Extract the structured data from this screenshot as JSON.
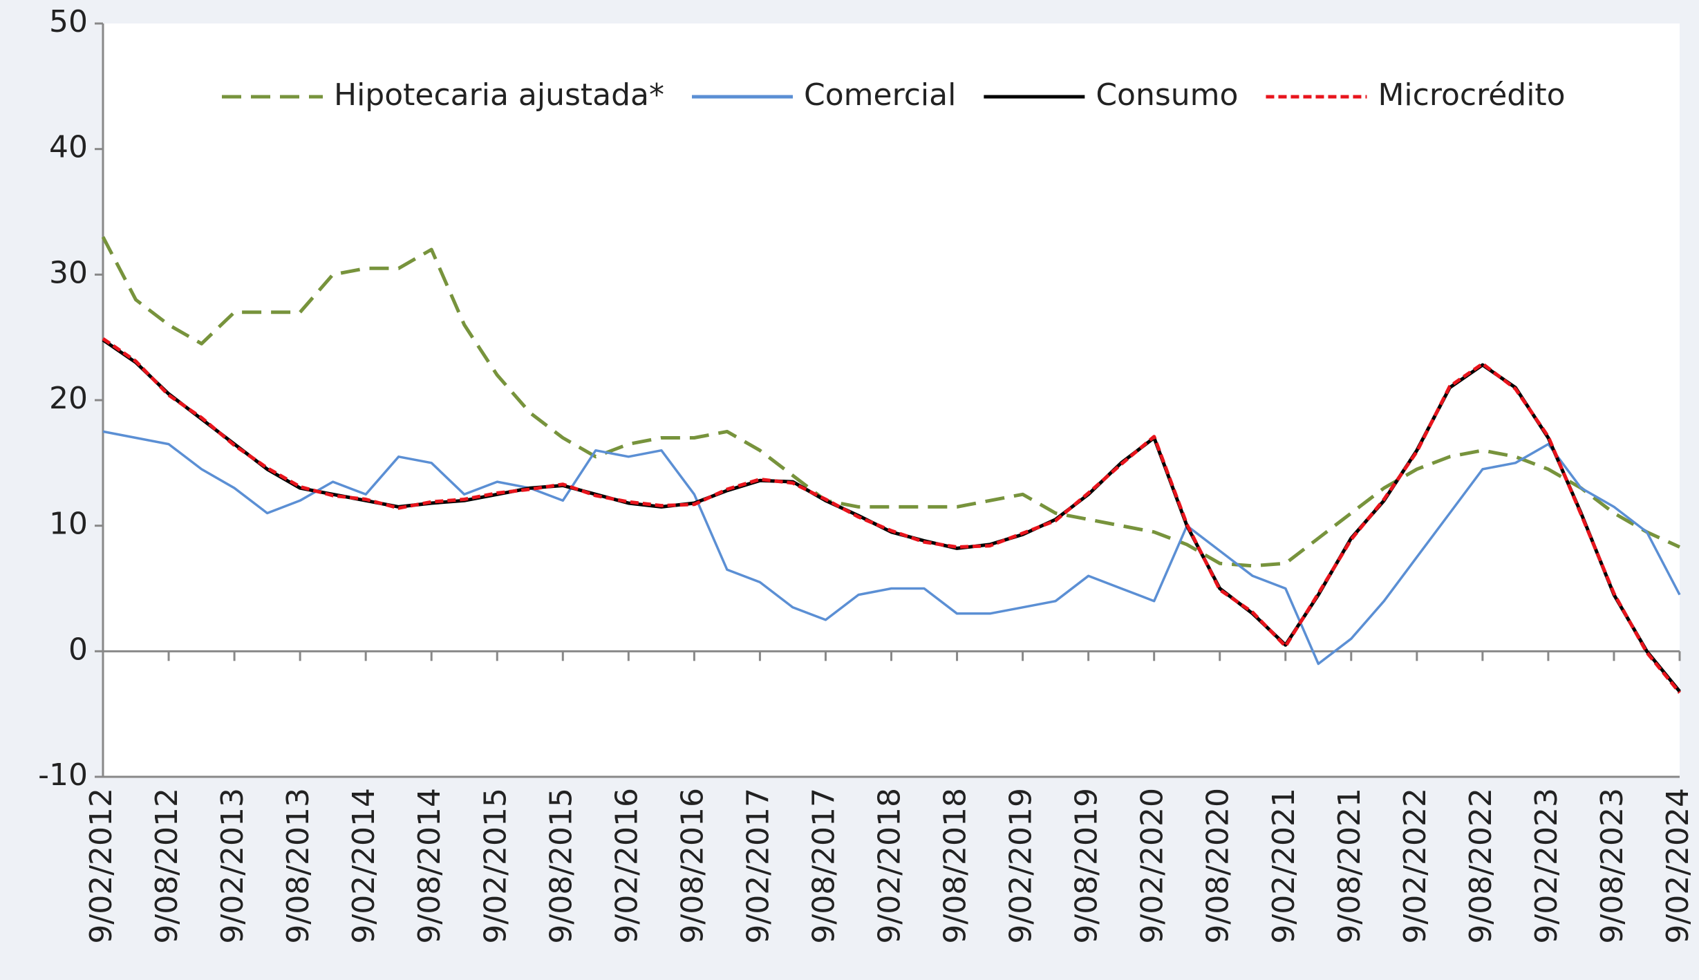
{
  "chart_data": {
    "type": "line",
    "categories": [
      "9/02/2012",
      null,
      "9/08/2012",
      null,
      "9/02/2013",
      null,
      "9/08/2013",
      null,
      "9/02/2014",
      null,
      "9/08/2014",
      null,
      "9/02/2015",
      null,
      "9/08/2015",
      null,
      "9/02/2016",
      null,
      "9/08/2016",
      null,
      "9/02/2017",
      null,
      "9/08/2017",
      null,
      "9/02/2018",
      null,
      "9/08/2018",
      null,
      "9/02/2019",
      null,
      "9/08/2019",
      null,
      "9/02/2020",
      null,
      "9/08/2020",
      null,
      "9/02/2021",
      null,
      "9/08/2021",
      null,
      "9/02/2022",
      null,
      "9/08/2022",
      null,
      "9/02/2023",
      null,
      "9/08/2023",
      null,
      "9/02/2024"
    ],
    "series": [
      {
        "name": "Hipotecaria ajustada*",
        "color": "#77933c",
        "dash": "dashed",
        "values": [
          33,
          28,
          26,
          24.5,
          27,
          27,
          27,
          30,
          30.5,
          30.5,
          32,
          26,
          22,
          19,
          17,
          15.5,
          16.5,
          17,
          17,
          17.5,
          16,
          14,
          12,
          11.5,
          11.5,
          11.5,
          11.5,
          12,
          12.5,
          11,
          10.5,
          10,
          9.5,
          8.5,
          7,
          6.8,
          7,
          9,
          11,
          13,
          14.5,
          15.5,
          16,
          15.5,
          14.5,
          13,
          11,
          9.5,
          8.3
        ]
      },
      {
        "name": "Comercial",
        "color": "#5b8fd4",
        "dash": "solid",
        "values": [
          17.5,
          17,
          16.5,
          14.5,
          13,
          11,
          12,
          13.5,
          12.5,
          15.5,
          15,
          12.5,
          13.5,
          13,
          12,
          16,
          15.5,
          16,
          12.5,
          6.5,
          5.5,
          3.5,
          2.5,
          4.5,
          5,
          5,
          3,
          3,
          3.5,
          4,
          6,
          5,
          4,
          10,
          8,
          6,
          5,
          -1,
          1,
          4,
          7.5,
          11,
          14.5,
          15,
          16.5,
          13,
          11.5,
          9.5,
          4.5
        ]
      },
      {
        "name": "Consumo",
        "color": "#000000",
        "dash": "solid",
        "values": [
          24.8,
          23,
          20.5,
          18.5,
          16.5,
          14.5,
          13,
          12.5,
          12,
          11.5,
          11.8,
          12,
          12.5,
          13,
          13.2,
          12.5,
          11.8,
          11.5,
          11.8,
          12.8,
          13.6,
          13.5,
          12,
          10.8,
          9.5,
          8.8,
          8.2,
          8.5,
          9.3,
          10.5,
          12.5,
          15,
          17,
          10,
          5,
          3,
          0.5,
          4.5,
          9,
          12,
          16,
          21,
          22.8,
          21,
          17,
          11,
          4.5,
          0,
          -3.2
        ]
      },
      {
        "name": "Microcrédito",
        "color": "#e8141c",
        "dash": "dotted",
        "values": [
          24.9,
          23.1,
          20.4,
          18.6,
          16.4,
          14.6,
          13.1,
          12.4,
          12.1,
          11.4,
          11.9,
          12.1,
          12.6,
          12.9,
          13.3,
          12.4,
          11.9,
          11.6,
          11.7,
          12.9,
          13.7,
          13.4,
          12.1,
          10.7,
          9.6,
          8.7,
          8.3,
          8.4,
          9.4,
          10.4,
          12.6,
          14.9,
          17.1,
          10.1,
          4.9,
          3.1,
          0.4,
          4.6,
          8.9,
          12.1,
          15.9,
          21.1,
          22.9,
          20.9,
          17.1,
          10.9,
          4.6,
          -0.1,
          -3.3
        ]
      }
    ],
    "ylim": [
      -10,
      50
    ],
    "yticks": [
      -10,
      0,
      10,
      20,
      30,
      40,
      50
    ]
  }
}
